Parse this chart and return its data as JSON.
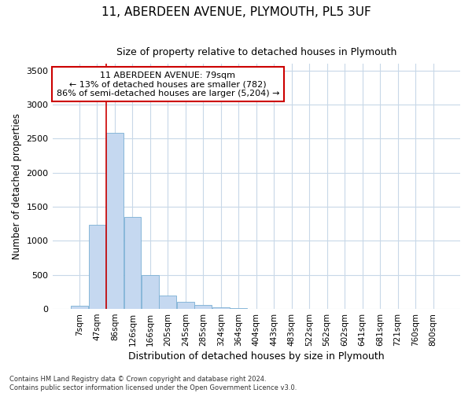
{
  "title1": "11, ABERDEEN AVENUE, PLYMOUTH, PL5 3UF",
  "title2": "Size of property relative to detached houses in Plymouth",
  "xlabel": "Distribution of detached houses by size in Plymouth",
  "ylabel": "Number of detached properties",
  "bar_categories": [
    "7sqm",
    "47sqm",
    "86sqm",
    "126sqm",
    "166sqm",
    "205sqm",
    "245sqm",
    "285sqm",
    "324sqm",
    "364sqm",
    "404sqm",
    "443sqm",
    "483sqm",
    "522sqm",
    "562sqm",
    "602sqm",
    "641sqm",
    "681sqm",
    "721sqm",
    "760sqm",
    "800sqm"
  ],
  "bar_values": [
    50,
    1230,
    2580,
    1350,
    500,
    200,
    110,
    55,
    25,
    10,
    5,
    2,
    2,
    0,
    0,
    0,
    0,
    0,
    0,
    0,
    0
  ],
  "bar_color": "#c5d8f0",
  "bar_edge_color": "#7aafd4",
  "bar_width": 0.97,
  "vline_color": "#cc0000",
  "annotation_line1": "11 ABERDEEN AVENUE: 79sqm",
  "annotation_line2": "← 13% of detached houses are smaller (782)",
  "annotation_line3": "86% of semi-detached houses are larger (5,204) →",
  "annotation_box_color": "#ffffff",
  "annotation_box_edge": "#cc0000",
  "ylim": [
    0,
    3600
  ],
  "yticks": [
    0,
    500,
    1000,
    1500,
    2000,
    2500,
    3000,
    3500
  ],
  "bg_color": "#ffffff",
  "grid_color": "#c8d8e8",
  "footnote": "Contains HM Land Registry data © Crown copyright and database right 2024.\nContains public sector information licensed under the Open Government Licence v3.0."
}
